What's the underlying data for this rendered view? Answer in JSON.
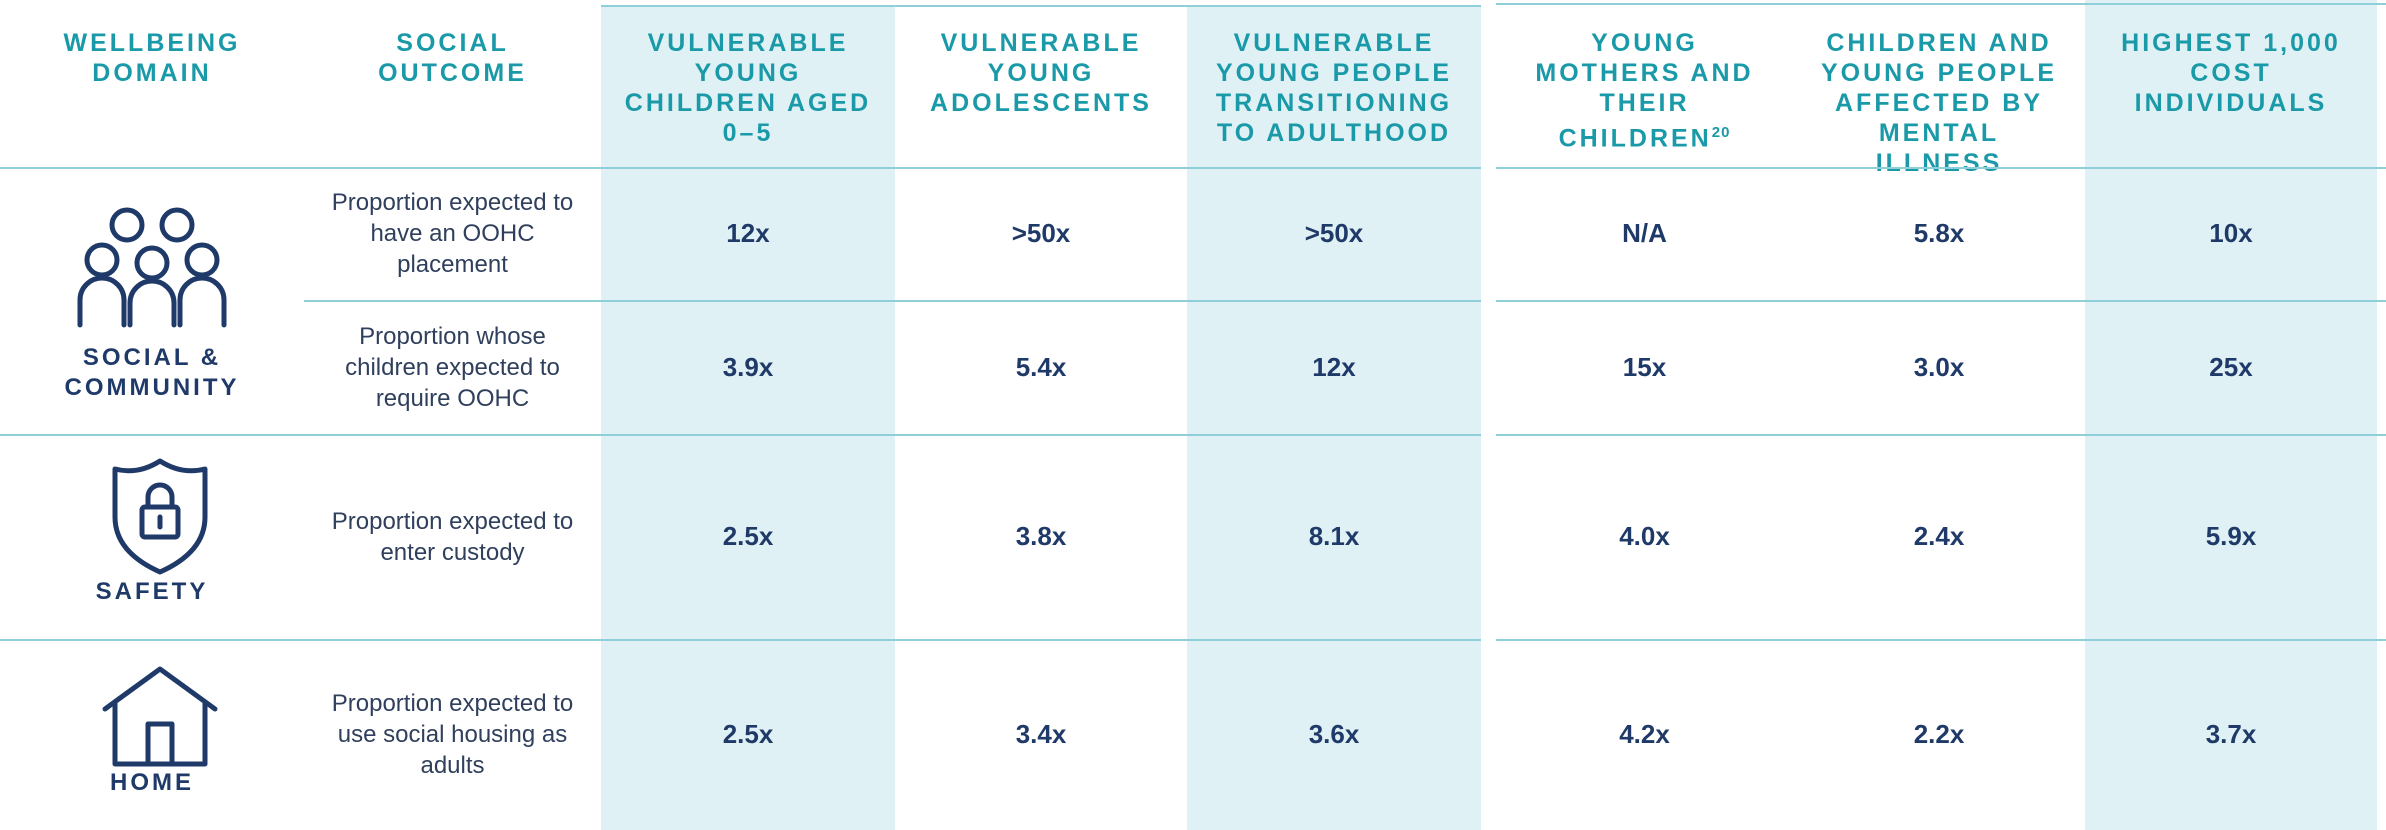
{
  "columns": [
    "WELLBEING DOMAIN",
    "SOCIAL OUTCOME",
    "VULNERABLE YOUNG CHILDREN AGED 0–5",
    "VULNERABLE YOUNG ADOLESCENTS",
    "VULNERABLE YOUNG PEOPLE TRANSITIONING TO ADULTHOOD",
    {
      "text": "YOUNG MOTHERS AND THEIR CHILDREN",
      "footnote": "20"
    },
    "CHILDREN AND YOUNG PEOPLE AFFECTED BY MENTAL ILLNESS",
    "HIGHEST 1,000 COST INDIVIDUALS"
  ],
  "domains": [
    {
      "label": "SOCIAL & COMMUNITY",
      "rows": [
        {
          "outcome": "Proportion expected to have an OOHC placement",
          "values": [
            "12x",
            ">50x",
            ">50x",
            "N/A",
            "5.8x",
            "10x"
          ]
        },
        {
          "outcome": "Proportion whose children expected to require OOHC",
          "values": [
            "3.9x",
            "5.4x",
            "12x",
            "15x",
            "3.0x",
            "25x"
          ]
        }
      ]
    },
    {
      "label": "SAFETY",
      "rows": [
        {
          "outcome": "Proportion expected to enter custody",
          "values": [
            "2.5x",
            "3.8x",
            "8.1x",
            "4.0x",
            "2.4x",
            "5.9x"
          ]
        }
      ]
    },
    {
      "label": "HOME",
      "rows": [
        {
          "outcome": "Proportion expected to use social housing as adults",
          "values": [
            "2.5x",
            "3.4x",
            "3.6x",
            "4.2x",
            "2.2x",
            "3.7x"
          ]
        }
      ]
    }
  ]
}
